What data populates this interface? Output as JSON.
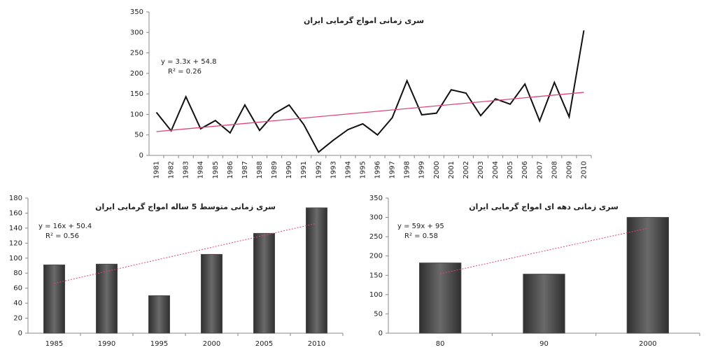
{
  "chart_data": [
    {
      "type": "line",
      "title": "سری زمانی امواج گرمایی ایران",
      "categories": [
        "1981",
        "1982",
        "1983",
        "1984",
        "1985",
        "1986",
        "1987",
        "1988",
        "1989",
        "1990",
        "1991",
        "1992",
        "1993",
        "1994",
        "1995",
        "1996",
        "1997",
        "1998",
        "1999",
        "2000",
        "2001",
        "2002",
        "2003",
        "2004",
        "2005",
        "2006",
        "2007",
        "2008",
        "2009",
        "2010"
      ],
      "values": [
        105,
        60,
        143,
        65,
        85,
        55,
        123,
        61,
        102,
        123,
        75,
        8,
        37,
        63,
        77,
        50,
        92,
        182,
        99,
        103,
        160,
        152,
        97,
        138,
        125,
        174,
        84,
        178,
        94,
        305
      ],
      "color": "#111111",
      "ylim": [
        0,
        350
      ],
      "yticks": [
        0,
        50,
        100,
        150,
        200,
        250,
        300,
        350
      ],
      "trendline": [
        58.1,
        153.8
      ],
      "trendline_color": "#e0457a",
      "trendline_dashed": false,
      "annotations": [
        "y = 3.3x + 54.8",
        "R² = 0.26"
      ]
    },
    {
      "type": "bar",
      "title": "سری زمانی متوسط 5 ساله امواج گرمایی ایران",
      "categories": [
        "1985",
        "1990",
        "1995",
        "2000",
        "2005",
        "2010"
      ],
      "values": [
        91,
        92,
        50,
        105,
        133,
        167
      ],
      "color": "#4a4a4a",
      "ylim": [
        0,
        180
      ],
      "yticks": [
        0,
        20,
        40,
        60,
        80,
        100,
        120,
        140,
        160,
        180
      ],
      "trendline": [
        66.4,
        146.4
      ],
      "trendline_color": "#e0457a",
      "trendline_dashed": true,
      "annotations": [
        "y = 16x + 50.4",
        "R² = 0.56"
      ]
    },
    {
      "type": "bar",
      "title": "سری زمانی دهه ای امواج گرمایی ایران",
      "categories": [
        "80",
        "90",
        "2000"
      ],
      "values": [
        182,
        153,
        300
      ],
      "color": "#4a4a4a",
      "ylim": [
        0,
        350
      ],
      "yticks": [
        0,
        50,
        100,
        150,
        200,
        250,
        300,
        350
      ],
      "trendline": [
        154,
        272
      ],
      "trendline_color": "#e0457a",
      "trendline_dashed": true,
      "annotations": [
        "y = 59x + 95",
        "R² = 0.58"
      ]
    }
  ]
}
